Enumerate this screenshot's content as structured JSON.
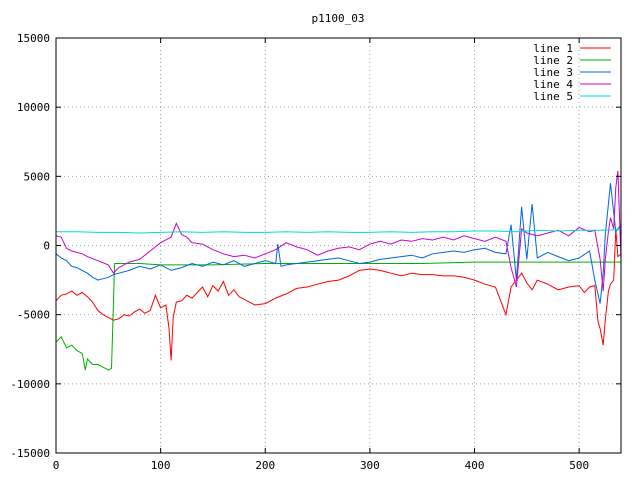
{
  "chart_data": {
    "type": "line",
    "title": "p1100_03",
    "xlim": [
      0,
      540
    ],
    "ylim": [
      -15000,
      15000
    ],
    "x_ticks": [
      0,
      100,
      200,
      300,
      400,
      500
    ],
    "y_ticks": [
      -15000,
      -10000,
      -5000,
      0,
      5000,
      10000,
      15000
    ],
    "grid": true,
    "legend_position": "top-right",
    "series": [
      {
        "name": "line 1",
        "color": "#ff0000",
        "x": [
          0,
          5,
          10,
          15,
          20,
          25,
          30,
          35,
          40,
          45,
          50,
          55,
          60,
          65,
          70,
          75,
          80,
          85,
          90,
          95,
          100,
          105,
          108,
          110,
          112,
          115,
          120,
          125,
          130,
          135,
          140,
          145,
          150,
          155,
          160,
          165,
          170,
          175,
          180,
          185,
          190,
          200,
          210,
          220,
          230,
          240,
          250,
          260,
          270,
          280,
          290,
          300,
          310,
          320,
          330,
          340,
          350,
          360,
          370,
          380,
          390,
          400,
          410,
          420,
          425,
          430,
          435,
          440,
          445,
          450,
          455,
          460,
          470,
          480,
          490,
          500,
          505,
          510,
          515,
          518,
          520,
          523,
          525,
          528,
          530,
          533,
          535,
          537,
          540
        ],
        "y": [
          -4000,
          -3600,
          -3500,
          -3300,
          -3600,
          -3400,
          -3700,
          -4100,
          -4700,
          -5000,
          -5200,
          -5400,
          -5300,
          -5000,
          -5100,
          -4800,
          -4600,
          -4900,
          -4700,
          -3600,
          -4500,
          -4300,
          -6000,
          -8300,
          -5200,
          -4100,
          -4000,
          -3600,
          -3800,
          -3400,
          -3000,
          -3700,
          -2900,
          -3300,
          -2600,
          -3600,
          -3200,
          -3700,
          -3900,
          -4100,
          -4300,
          -4200,
          -3800,
          -3500,
          -3100,
          -3000,
          -2800,
          -2600,
          -2500,
          -2200,
          -1800,
          -1700,
          -1800,
          -2000,
          -2200,
          -2000,
          -2100,
          -2100,
          -2200,
          -2200,
          -2300,
          -2500,
          -2800,
          -3000,
          -4000,
          -5000,
          -3000,
          -2500,
          -2000,
          -2700,
          -3200,
          -2500,
          -2800,
          -3200,
          -3000,
          -2900,
          -3400,
          -3000,
          -2900,
          -5500,
          -6000,
          -7200,
          -5400,
          -3300,
          -2800,
          -2500,
          1200,
          -800,
          -600
        ]
      },
      {
        "name": "line 2",
        "color": "#00b000",
        "x": [
          0,
          5,
          10,
          15,
          20,
          25,
          28,
          30,
          35,
          40,
          45,
          50,
          53,
          55,
          56,
          60,
          80,
          100,
          150,
          200,
          250,
          300,
          350,
          400,
          450,
          500,
          540
        ],
        "y": [
          -7000,
          -6600,
          -7400,
          -7200,
          -7600,
          -7800,
          -9000,
          -8200,
          -8600,
          -8600,
          -8800,
          -9000,
          -8900,
          -4000,
          -1300,
          -1300,
          -1300,
          -1400,
          -1400,
          -1300,
          -1300,
          -1300,
          -1300,
          -1200,
          -1200,
          -1200,
          -1200
        ]
      },
      {
        "name": "line 3",
        "color": "#0066dd",
        "x": [
          0,
          5,
          10,
          15,
          20,
          25,
          30,
          35,
          40,
          45,
          50,
          55,
          60,
          70,
          80,
          90,
          100,
          110,
          120,
          130,
          140,
          150,
          160,
          170,
          180,
          190,
          200,
          210,
          212,
          215,
          220,
          230,
          240,
          250,
          260,
          270,
          280,
          290,
          300,
          310,
          320,
          330,
          340,
          350,
          360,
          370,
          380,
          390,
          400,
          410,
          420,
          430,
          435,
          440,
          445,
          450,
          455,
          460,
          465,
          470,
          480,
          490,
          500,
          510,
          515,
          520,
          523,
          525,
          528,
          530,
          535,
          540
        ],
        "y": [
          -600,
          -900,
          -1100,
          -1500,
          -1600,
          -1800,
          -2000,
          -2300,
          -2500,
          -2400,
          -2300,
          -2100,
          -2000,
          -1800,
          -1500,
          -1700,
          -1400,
          -1800,
          -1600,
          -1300,
          -1500,
          -1200,
          -1400,
          -1100,
          -1500,
          -1300,
          -1100,
          -1300,
          100,
          -1500,
          -1400,
          -1300,
          -1200,
          -1100,
          -1000,
          -900,
          -1100,
          -1300,
          -1200,
          -1000,
          -900,
          -800,
          -700,
          -900,
          -600,
          -500,
          -400,
          -500,
          -300,
          -200,
          -500,
          -600,
          1500,
          -2500,
          2800,
          -1000,
          3000,
          -900,
          -700,
          -500,
          -800,
          -1100,
          -900,
          -400,
          -2500,
          -4200,
          -2000,
          800,
          3000,
          4500,
          1000,
          1500
        ]
      },
      {
        "name": "line 4",
        "color": "#cc00cc",
        "x": [
          0,
          5,
          10,
          15,
          20,
          25,
          30,
          40,
          50,
          55,
          60,
          70,
          80,
          90,
          100,
          110,
          115,
          120,
          125,
          130,
          140,
          150,
          160,
          170,
          180,
          190,
          200,
          210,
          220,
          230,
          240,
          250,
          260,
          270,
          280,
          290,
          300,
          310,
          320,
          330,
          340,
          350,
          360,
          370,
          380,
          390,
          400,
          410,
          420,
          430,
          435,
          440,
          445,
          450,
          460,
          470,
          480,
          490,
          500,
          510,
          515,
          520,
          523,
          525,
          528,
          530,
          533,
          535,
          537,
          540
        ],
        "y": [
          700,
          600,
          -200,
          -400,
          -500,
          -600,
          -800,
          -1100,
          -1400,
          -2000,
          -1600,
          -1200,
          -1000,
          -400,
          200,
          600,
          1600,
          800,
          600,
          200,
          100,
          -300,
          -600,
          -800,
          -700,
          -900,
          -600,
          -300,
          200,
          -100,
          -300,
          -700,
          -400,
          -200,
          -100,
          -300,
          100,
          300,
          100,
          400,
          300,
          500,
          400,
          600,
          400,
          700,
          500,
          300,
          600,
          300,
          -1600,
          -3000,
          1200,
          900,
          700,
          900,
          1100,
          700,
          1300,
          1000,
          1100,
          -1000,
          -3300,
          -1000,
          1000,
          2000,
          1200,
          4200,
          5400,
          -1000
        ]
      },
      {
        "name": "line 5",
        "color": "#00d8d8",
        "x": [
          0,
          20,
          40,
          60,
          80,
          100,
          120,
          140,
          160,
          180,
          200,
          220,
          240,
          260,
          280,
          300,
          320,
          340,
          360,
          380,
          400,
          420,
          440,
          460,
          480,
          500,
          520,
          540
        ],
        "y": [
          1000,
          1000,
          950,
          950,
          900,
          950,
          1000,
          950,
          1000,
          950,
          950,
          1000,
          950,
          1000,
          950,
          950,
          1000,
          950,
          1000,
          1000,
          1050,
          1050,
          1000,
          1100,
          1050,
          1100,
          1100,
          1150
        ]
      }
    ]
  }
}
